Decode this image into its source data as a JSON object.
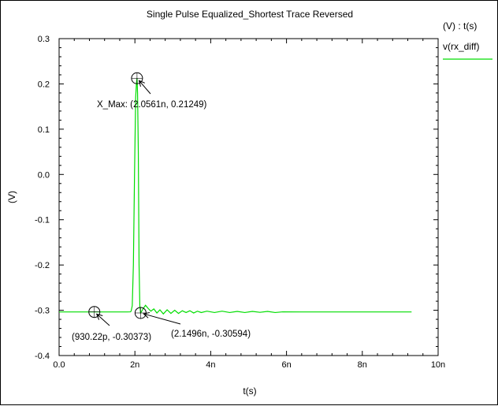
{
  "chart_data": {
    "type": "line",
    "title": "Single Pulse Equalized_Shortest Trace Reversed",
    "xlabel": "t(s)",
    "ylabel": "(V)",
    "xlim": [
      0,
      10
    ],
    "ylim": [
      -0.4,
      0.3
    ],
    "x_ticks": [
      {
        "value": 0,
        "label": "0.0"
      },
      {
        "value": 2,
        "label": "2n"
      },
      {
        "value": 4,
        "label": "4n"
      },
      {
        "value": 6,
        "label": "6n"
      },
      {
        "value": 8,
        "label": "8n"
      },
      {
        "value": 10,
        "label": "10n"
      }
    ],
    "y_ticks": [
      {
        "value": 0.3,
        "label": "0.3"
      },
      {
        "value": 0.2,
        "label": "0.2"
      },
      {
        "value": 0.1,
        "label": "0.1"
      },
      {
        "value": 0.0,
        "label": "0.0"
      },
      {
        "value": -0.1,
        "label": "-0.1"
      },
      {
        "value": -0.2,
        "label": "-0.2"
      },
      {
        "value": -0.3,
        "label": "-0.3"
      },
      {
        "value": -0.4,
        "label": "-0.4"
      }
    ],
    "grid": false,
    "legend": {
      "header": "(V) : t(s)",
      "placement": "right",
      "entries": [
        {
          "name": "v(rx_diff)",
          "color": "#00dd00"
        }
      ]
    },
    "series": [
      {
        "name": "v(rx_diff)",
        "color": "#00dd00",
        "x": [
          0.0,
          1.0,
          1.8,
          1.88,
          1.9,
          1.93,
          1.96,
          1.99,
          2.02,
          2.04,
          2.0561,
          2.07,
          2.09,
          2.11,
          2.13,
          2.1496,
          2.18,
          2.22,
          2.28,
          2.35,
          2.42,
          2.5,
          2.58,
          2.66,
          2.75,
          2.85,
          2.95,
          3.05,
          3.15,
          3.25,
          3.35,
          3.45,
          3.55,
          3.65,
          3.75,
          3.9,
          4.1,
          4.3,
          4.5,
          4.7,
          4.9,
          5.1,
          5.3,
          5.5,
          5.7,
          5.9,
          6.5,
          7.5,
          8.5,
          9.3
        ],
        "y": [
          -0.3037,
          -0.30373,
          -0.3037,
          -0.3035,
          -0.302,
          -0.29,
          -0.2,
          0.0,
          0.17,
          0.2,
          0.21249,
          0.18,
          0.05,
          -0.2,
          -0.29,
          -0.30594,
          -0.302,
          -0.296,
          -0.289,
          -0.296,
          -0.302,
          -0.297,
          -0.306,
          -0.299,
          -0.308,
          -0.299,
          -0.307,
          -0.3,
          -0.307,
          -0.301,
          -0.305,
          -0.301,
          -0.306,
          -0.302,
          -0.305,
          -0.302,
          -0.305,
          -0.302,
          -0.305,
          -0.3025,
          -0.305,
          -0.3025,
          -0.3045,
          -0.3025,
          -0.305,
          -0.3035,
          -0.3037,
          -0.3037,
          -0.3037,
          -0.3037
        ]
      }
    ],
    "annotations": [
      {
        "text": "X_Max: (2.0561n, 0.21249)",
        "x": 2.0561,
        "y": 0.21249
      },
      {
        "text": "(930.22p, -0.30373)",
        "x": 0.93022,
        "y": -0.30373
      },
      {
        "text": "(2.1496n, -0.30594)",
        "x": 2.1496,
        "y": -0.30594
      }
    ]
  }
}
